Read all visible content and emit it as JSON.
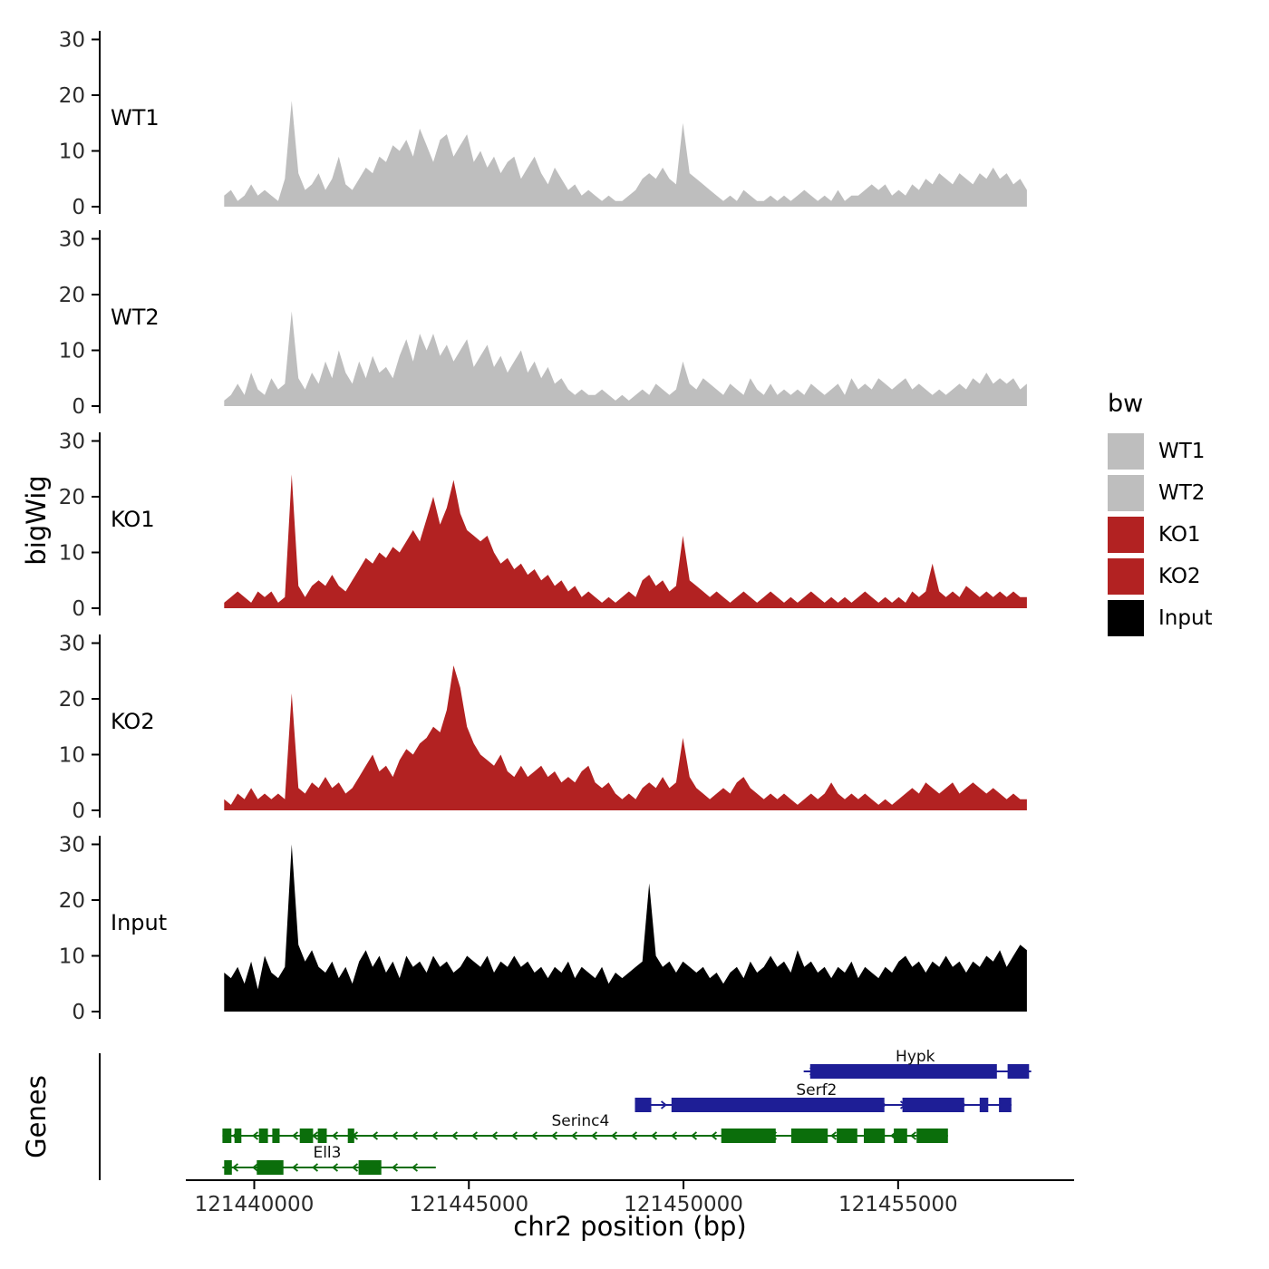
{
  "genes_axis_label": "Genes",
  "legend": {
    "title": "bw",
    "entries": [
      {
        "label": "WT1",
        "color": "#BEBEBE"
      },
      {
        "label": "WT2",
        "color": "#BEBEBE"
      },
      {
        "label": "KO1",
        "color": "#B22222"
      },
      {
        "label": "KO2",
        "color": "#B22222"
      },
      {
        "label": "Input",
        "color": "#000000"
      }
    ]
  },
  "chart_data": {
    "type": "area",
    "title": "",
    "xlabel": "chr2 position (bp)",
    "ylabel": "bigWig",
    "x_domain": [
      121436400,
      121459100
    ],
    "x_range": [
      121439300,
      121458000
    ],
    "ylim": [
      0,
      32
    ],
    "yticks": [
      0,
      10,
      20,
      30
    ],
    "xticks": [
      {
        "bp": 121440000,
        "label": "121440000"
      },
      {
        "bp": 121445000,
        "label": "121445000"
      },
      {
        "bp": 121450000,
        "label": "121450000"
      },
      {
        "bp": 121455000,
        "label": "121455000"
      }
    ],
    "series": [
      {
        "name": "WT1",
        "color": "#BEBEBE",
        "values": [
          2,
          3,
          1,
          2,
          4,
          2,
          3,
          2,
          1,
          5,
          19,
          6,
          3,
          4,
          6,
          3,
          5,
          9,
          4,
          3,
          5,
          7,
          6,
          9,
          8,
          11,
          10,
          12,
          9,
          14,
          11,
          8,
          12,
          13,
          9,
          11,
          13,
          8,
          10,
          7,
          9,
          6,
          8,
          9,
          5,
          7,
          9,
          6,
          4,
          7,
          5,
          3,
          4,
          2,
          3,
          2,
          1,
          2,
          1,
          1,
          2,
          3,
          5,
          6,
          5,
          7,
          5,
          4,
          15,
          6,
          5,
          4,
          3,
          2,
          1,
          2,
          1,
          3,
          2,
          1,
          1,
          2,
          1,
          2,
          1,
          2,
          3,
          2,
          1,
          2,
          1,
          3,
          1,
          2,
          2,
          3,
          4,
          3,
          4,
          2,
          3,
          2,
          4,
          3,
          5,
          4,
          6,
          5,
          4,
          6,
          5,
          4,
          6,
          5,
          7,
          5,
          6,
          4,
          5,
          3
        ]
      },
      {
        "name": "WT2",
        "color": "#BEBEBE",
        "values": [
          1,
          2,
          4,
          2,
          6,
          3,
          2,
          5,
          3,
          4,
          17,
          5,
          3,
          6,
          4,
          8,
          5,
          10,
          6,
          4,
          8,
          5,
          9,
          6,
          7,
          5,
          9,
          12,
          8,
          13,
          10,
          13,
          9,
          11,
          8,
          10,
          12,
          7,
          9,
          11,
          7,
          9,
          6,
          8,
          10,
          6,
          8,
          5,
          7,
          4,
          5,
          3,
          2,
          3,
          2,
          2,
          3,
          2,
          1,
          2,
          1,
          2,
          3,
          2,
          4,
          3,
          2,
          3,
          8,
          4,
          3,
          5,
          4,
          3,
          2,
          4,
          3,
          2,
          5,
          3,
          2,
          4,
          2,
          3,
          2,
          3,
          2,
          4,
          3,
          2,
          3,
          4,
          2,
          5,
          3,
          4,
          3,
          5,
          4,
          3,
          4,
          5,
          3,
          4,
          3,
          2,
          3,
          2,
          3,
          4,
          3,
          5,
          4,
          6,
          4,
          5,
          4,
          5,
          3,
          4
        ]
      },
      {
        "name": "KO1",
        "color": "#B22222",
        "values": [
          1,
          2,
          3,
          2,
          1,
          3,
          2,
          3,
          1,
          2,
          24,
          4,
          2,
          4,
          5,
          4,
          6,
          4,
          3,
          5,
          7,
          9,
          8,
          10,
          9,
          11,
          10,
          12,
          14,
          12,
          16,
          20,
          15,
          18,
          23,
          17,
          14,
          13,
          12,
          13,
          10,
          8,
          9,
          7,
          8,
          6,
          7,
          5,
          6,
          4,
          5,
          3,
          4,
          2,
          3,
          2,
          1,
          2,
          1,
          2,
          3,
          2,
          5,
          6,
          4,
          5,
          3,
          4,
          13,
          5,
          4,
          3,
          2,
          3,
          2,
          1,
          2,
          3,
          2,
          1,
          2,
          3,
          2,
          1,
          2,
          1,
          2,
          3,
          2,
          1,
          2,
          1,
          2,
          1,
          2,
          3,
          2,
          1,
          2,
          1,
          2,
          1,
          3,
          2,
          3,
          8,
          3,
          2,
          3,
          2,
          4,
          3,
          2,
          3,
          2,
          3,
          2,
          3,
          2,
          2
        ]
      },
      {
        "name": "KO2",
        "color": "#B22222",
        "values": [
          2,
          1,
          3,
          2,
          4,
          2,
          3,
          2,
          3,
          2,
          21,
          4,
          3,
          5,
          4,
          6,
          4,
          5,
          3,
          4,
          6,
          8,
          10,
          7,
          8,
          6,
          9,
          11,
          10,
          12,
          13,
          15,
          14,
          18,
          26,
          22,
          15,
          12,
          10,
          9,
          8,
          10,
          7,
          6,
          8,
          6,
          7,
          8,
          6,
          7,
          5,
          6,
          5,
          7,
          8,
          5,
          4,
          5,
          3,
          2,
          3,
          2,
          4,
          5,
          4,
          6,
          4,
          5,
          13,
          6,
          4,
          3,
          2,
          3,
          4,
          3,
          5,
          6,
          4,
          3,
          2,
          3,
          2,
          3,
          2,
          1,
          2,
          3,
          2,
          3,
          5,
          3,
          2,
          3,
          2,
          3,
          2,
          1,
          2,
          1,
          2,
          3,
          4,
          3,
          5,
          4,
          3,
          4,
          5,
          3,
          4,
          5,
          4,
          3,
          4,
          3,
          2,
          3,
          2,
          2
        ]
      },
      {
        "name": "Input",
        "color": "#000000",
        "values": [
          7,
          6,
          8,
          5,
          9,
          4,
          10,
          7,
          6,
          8,
          30,
          12,
          9,
          11,
          8,
          7,
          9,
          6,
          8,
          5,
          9,
          11,
          8,
          10,
          7,
          9,
          6,
          10,
          8,
          9,
          7,
          10,
          8,
          9,
          7,
          8,
          10,
          9,
          8,
          10,
          7,
          9,
          8,
          10,
          8,
          9,
          7,
          8,
          6,
          8,
          7,
          9,
          6,
          8,
          7,
          6,
          8,
          5,
          7,
          6,
          7,
          8,
          9,
          23,
          10,
          8,
          9,
          7,
          9,
          8,
          7,
          8,
          6,
          7,
          5,
          7,
          8,
          6,
          9,
          7,
          8,
          10,
          8,
          9,
          7,
          11,
          8,
          9,
          7,
          8,
          6,
          8,
          7,
          9,
          6,
          8,
          7,
          6,
          8,
          7,
          9,
          10,
          8,
          9,
          7,
          9,
          8,
          10,
          8,
          9,
          7,
          9,
          8,
          10,
          9,
          11,
          8,
          10,
          12,
          11
        ]
      }
    ],
    "genes": [
      {
        "name": "Hypk",
        "color": "#1E1E96",
        "strand": "+",
        "start": 121452800,
        "end": 121458100,
        "row": 0,
        "label_bp": 121455400,
        "exons": [
          [
            121452950,
            121457300
          ],
          [
            121457550,
            121458050
          ]
        ]
      },
      {
        "name": "Serf2",
        "color": "#1E1E96",
        "strand": "+",
        "start": 121448870,
        "end": 121457640,
        "row": 1,
        "label_bp": 121453100,
        "exons": [
          [
            121448870,
            121449250
          ],
          [
            121449720,
            121454680
          ],
          [
            121455100,
            121456540
          ],
          [
            121456900,
            121457100
          ],
          [
            121457350,
            121457640
          ]
        ]
      },
      {
        "name": "Serinc4",
        "color": "#0B6E0B",
        "strand": "-",
        "start": 121439260,
        "end": 121456160,
        "row": 2,
        "label_bp": 121447600,
        "exons": [
          [
            121439260,
            121439470
          ],
          [
            121439540,
            121439700
          ],
          [
            121440110,
            121440320
          ],
          [
            121440420,
            121440590
          ],
          [
            121441060,
            121441370
          ],
          [
            121441480,
            121441690
          ],
          [
            121442180,
            121442330
          ],
          [
            121450880,
            121452150
          ],
          [
            121452510,
            121453360
          ],
          [
            121453570,
            121454050
          ],
          [
            121454200,
            121454690
          ],
          [
            121454900,
            121455210
          ],
          [
            121455430,
            121456160
          ]
        ]
      },
      {
        "name": "Ell3",
        "color": "#0B6E0B",
        "strand": "-",
        "start": 121439260,
        "end": 121444230,
        "row": 3,
        "label_bp": 121441700,
        "exons": [
          [
            121439300,
            121439480
          ],
          [
            121440060,
            121440680
          ],
          [
            121442430,
            121442960
          ]
        ]
      }
    ]
  }
}
